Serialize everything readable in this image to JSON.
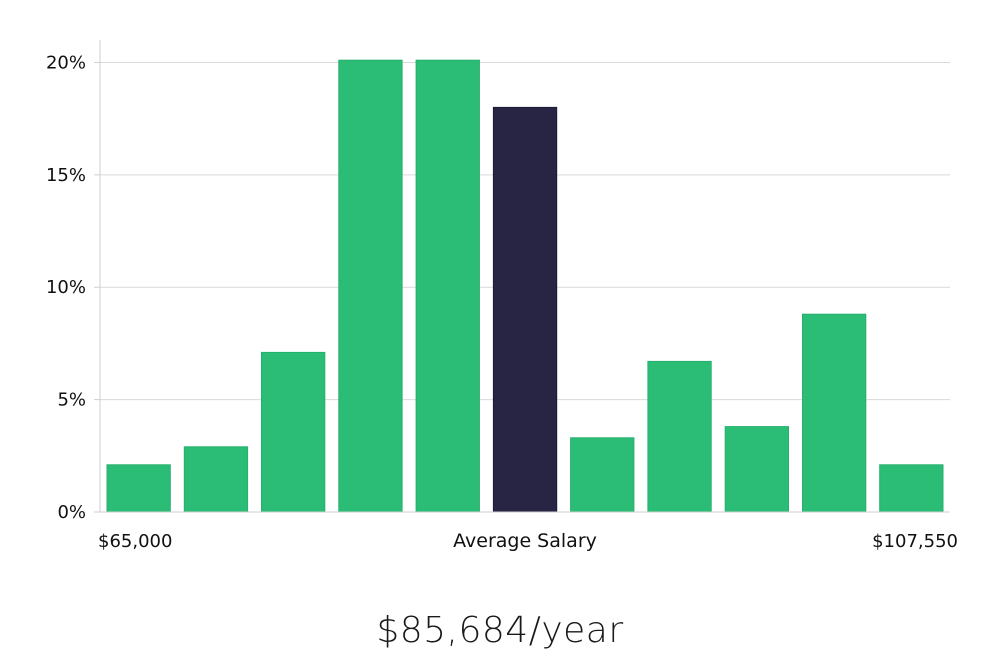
{
  "chart_data": {
    "type": "bar",
    "title": "",
    "xlabel": "Average Salary",
    "ylabel": "",
    "x_tick_labels": {
      "left": "$65,000",
      "right": "$107,550"
    },
    "y_ticks": [
      "0%",
      "5%",
      "10%",
      "15%",
      "20%"
    ],
    "ylim": [
      0,
      21
    ],
    "grid": true,
    "values": [
      2.1,
      2.9,
      7.1,
      20.1,
      20.1,
      18.0,
      3.3,
      6.7,
      3.8,
      8.8,
      2.1
    ],
    "highlight_index": 5,
    "colors": {
      "bar": "#2bbd76",
      "highlight": "#272444",
      "grid": "#d9d9d9",
      "axis": "#cfcfcf"
    }
  },
  "caption": "$85,684/year"
}
